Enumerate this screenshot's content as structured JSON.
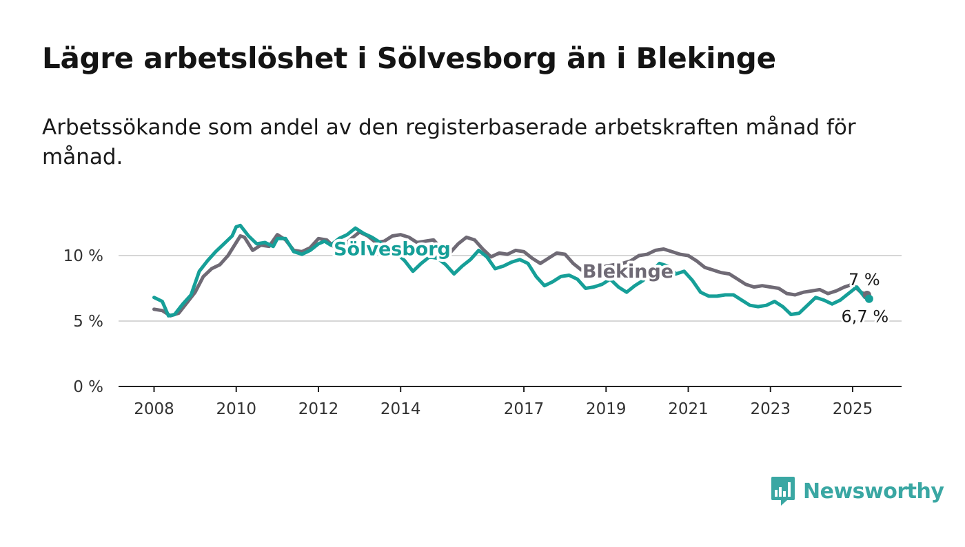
{
  "title": "Lägre arbetslöshet i Sölvesborg än i Blekinge",
  "subtitle": "Arbetssökande som andel av den registerbaserade arbetskraften månad för månad.",
  "logo": {
    "text": "Newsworthy",
    "icon": "newsworthy-chart-bubble-icon",
    "color": "#3aa7a3"
  },
  "chart_data": {
    "type": "line",
    "title": "Lägre arbetslöshet i Sölvesborg än i Blekinge",
    "subtitle": "Arbetssökande som andel av den registerbaserade arbetskraften månad för månad.",
    "x_ticks": [
      2008,
      2010,
      2012,
      2014,
      2017,
      2019,
      2021,
      2023,
      2025
    ],
    "x_range": [
      2007.2,
      2026.2
    ],
    "y_ticks": [
      {
        "value": 0,
        "label": "0 %"
      },
      {
        "value": 5,
        "label": "5 %"
      },
      {
        "value": 10,
        "label": "10 %"
      }
    ],
    "y_range": [
      0,
      14
    ],
    "grid": true,
    "series": [
      {
        "name": "Blekinge",
        "color": "#6f6a75",
        "end_label": "7 %",
        "points": [
          [
            2008.0,
            5.9
          ],
          [
            2008.2,
            5.8
          ],
          [
            2008.4,
            5.4
          ],
          [
            2008.6,
            5.6
          ],
          [
            2008.8,
            6.4
          ],
          [
            2009.0,
            7.2
          ],
          [
            2009.2,
            8.4
          ],
          [
            2009.4,
            9.0
          ],
          [
            2009.6,
            9.3
          ],
          [
            2009.8,
            10.0
          ],
          [
            2010.0,
            11.0
          ],
          [
            2010.1,
            11.5
          ],
          [
            2010.2,
            11.4
          ],
          [
            2010.4,
            10.4
          ],
          [
            2010.6,
            10.8
          ],
          [
            2010.8,
            10.7
          ],
          [
            2011.0,
            11.6
          ],
          [
            2011.2,
            11.2
          ],
          [
            2011.4,
            10.4
          ],
          [
            2011.6,
            10.3
          ],
          [
            2011.8,
            10.6
          ],
          [
            2012.0,
            11.3
          ],
          [
            2012.2,
            11.2
          ],
          [
            2012.4,
            10.6
          ],
          [
            2012.6,
            10.7
          ],
          [
            2012.8,
            11.3
          ],
          [
            2013.0,
            11.8
          ],
          [
            2013.2,
            11.5
          ],
          [
            2013.4,
            11.0
          ],
          [
            2013.6,
            11.1
          ],
          [
            2013.8,
            11.5
          ],
          [
            2014.0,
            11.6
          ],
          [
            2014.2,
            11.4
          ],
          [
            2014.4,
            11.0
          ],
          [
            2014.6,
            11.1
          ],
          [
            2014.8,
            11.2
          ],
          [
            2015.0,
            10.5
          ],
          [
            2015.2,
            10.2
          ],
          [
            2015.4,
            10.9
          ],
          [
            2015.6,
            11.4
          ],
          [
            2015.8,
            11.2
          ],
          [
            2016.0,
            10.5
          ],
          [
            2016.2,
            9.9
          ],
          [
            2016.4,
            10.2
          ],
          [
            2016.6,
            10.1
          ],
          [
            2016.8,
            10.4
          ],
          [
            2017.0,
            10.3
          ],
          [
            2017.2,
            9.8
          ],
          [
            2017.4,
            9.4
          ],
          [
            2017.6,
            9.8
          ],
          [
            2017.8,
            10.2
          ],
          [
            2018.0,
            10.1
          ],
          [
            2018.2,
            9.4
          ],
          [
            2018.4,
            8.9
          ],
          [
            2018.6,
            8.7
          ],
          [
            2018.8,
            9.0
          ],
          [
            2019.0,
            9.2
          ],
          [
            2019.2,
            9.3
          ],
          [
            2019.4,
            9.4
          ],
          [
            2019.6,
            9.6
          ],
          [
            2019.8,
            10.0
          ],
          [
            2020.0,
            10.1
          ],
          [
            2020.2,
            10.4
          ],
          [
            2020.4,
            10.5
          ],
          [
            2020.6,
            10.3
          ],
          [
            2020.8,
            10.1
          ],
          [
            2021.0,
            10.0
          ],
          [
            2021.2,
            9.6
          ],
          [
            2021.4,
            9.1
          ],
          [
            2021.6,
            8.9
          ],
          [
            2021.8,
            8.7
          ],
          [
            2022.0,
            8.6
          ],
          [
            2022.2,
            8.2
          ],
          [
            2022.4,
            7.8
          ],
          [
            2022.6,
            7.6
          ],
          [
            2022.8,
            7.7
          ],
          [
            2023.0,
            7.6
          ],
          [
            2023.2,
            7.5
          ],
          [
            2023.4,
            7.1
          ],
          [
            2023.6,
            7.0
          ],
          [
            2023.8,
            7.2
          ],
          [
            2024.0,
            7.3
          ],
          [
            2024.2,
            7.4
          ],
          [
            2024.4,
            7.1
          ],
          [
            2024.6,
            7.3
          ],
          [
            2024.8,
            7.6
          ],
          [
            2025.0,
            7.8
          ],
          [
            2025.2,
            7.2
          ],
          [
            2025.35,
            7.0
          ]
        ]
      },
      {
        "name": "Sölvesborg",
        "color": "#169f98",
        "end_label": "6,7 %",
        "points": [
          [
            2008.0,
            6.8
          ],
          [
            2008.2,
            6.5
          ],
          [
            2008.35,
            5.4
          ],
          [
            2008.5,
            5.5
          ],
          [
            2008.7,
            6.3
          ],
          [
            2008.9,
            7.0
          ],
          [
            2009.1,
            8.8
          ],
          [
            2009.3,
            9.6
          ],
          [
            2009.5,
            10.3
          ],
          [
            2009.7,
            10.9
          ],
          [
            2009.9,
            11.5
          ],
          [
            2010.0,
            12.2
          ],
          [
            2010.1,
            12.3
          ],
          [
            2010.3,
            11.5
          ],
          [
            2010.5,
            10.9
          ],
          [
            2010.7,
            11.0
          ],
          [
            2010.9,
            10.7
          ],
          [
            2011.0,
            11.3
          ],
          [
            2011.2,
            11.3
          ],
          [
            2011.4,
            10.3
          ],
          [
            2011.6,
            10.1
          ],
          [
            2011.8,
            10.4
          ],
          [
            2012.0,
            10.9
          ],
          [
            2012.15,
            11.1
          ],
          [
            2012.3,
            10.8
          ],
          [
            2012.5,
            11.3
          ],
          [
            2012.7,
            11.6
          ],
          [
            2012.9,
            12.1
          ],
          [
            2013.1,
            11.7
          ],
          [
            2013.3,
            11.4
          ],
          [
            2013.5,
            11.0
          ],
          [
            2013.7,
            10.6
          ],
          [
            2013.9,
            10.2
          ],
          [
            2014.1,
            9.6
          ],
          [
            2014.3,
            8.8
          ],
          [
            2014.5,
            9.4
          ],
          [
            2014.7,
            9.9
          ],
          [
            2014.9,
            9.8
          ],
          [
            2015.1,
            9.3
          ],
          [
            2015.3,
            8.6
          ],
          [
            2015.5,
            9.2
          ],
          [
            2015.7,
            9.7
          ],
          [
            2015.9,
            10.4
          ],
          [
            2016.1,
            9.9
          ],
          [
            2016.3,
            9.0
          ],
          [
            2016.5,
            9.2
          ],
          [
            2016.7,
            9.5
          ],
          [
            2016.9,
            9.7
          ],
          [
            2017.1,
            9.4
          ],
          [
            2017.3,
            8.4
          ],
          [
            2017.5,
            7.7
          ],
          [
            2017.7,
            8.0
          ],
          [
            2017.9,
            8.4
          ],
          [
            2018.1,
            8.5
          ],
          [
            2018.3,
            8.2
          ],
          [
            2018.5,
            7.5
          ],
          [
            2018.7,
            7.6
          ],
          [
            2018.9,
            7.8
          ],
          [
            2019.1,
            8.2
          ],
          [
            2019.3,
            7.6
          ],
          [
            2019.5,
            7.2
          ],
          [
            2019.7,
            7.7
          ],
          [
            2019.9,
            8.1
          ],
          [
            2020.1,
            8.8
          ],
          [
            2020.3,
            9.4
          ],
          [
            2020.5,
            9.2
          ],
          [
            2020.7,
            8.6
          ],
          [
            2020.9,
            8.8
          ],
          [
            2021.1,
            8.1
          ],
          [
            2021.3,
            7.2
          ],
          [
            2021.5,
            6.9
          ],
          [
            2021.7,
            6.9
          ],
          [
            2021.9,
            7.0
          ],
          [
            2022.1,
            7.0
          ],
          [
            2022.3,
            6.6
          ],
          [
            2022.5,
            6.2
          ],
          [
            2022.7,
            6.1
          ],
          [
            2022.9,
            6.2
          ],
          [
            2023.1,
            6.5
          ],
          [
            2023.3,
            6.1
          ],
          [
            2023.5,
            5.5
          ],
          [
            2023.7,
            5.6
          ],
          [
            2023.9,
            6.2
          ],
          [
            2024.1,
            6.8
          ],
          [
            2024.3,
            6.6
          ],
          [
            2024.5,
            6.3
          ],
          [
            2024.7,
            6.6
          ],
          [
            2024.9,
            7.1
          ],
          [
            2025.1,
            7.6
          ],
          [
            2025.3,
            6.8
          ],
          [
            2025.4,
            6.7
          ]
        ]
      }
    ]
  }
}
